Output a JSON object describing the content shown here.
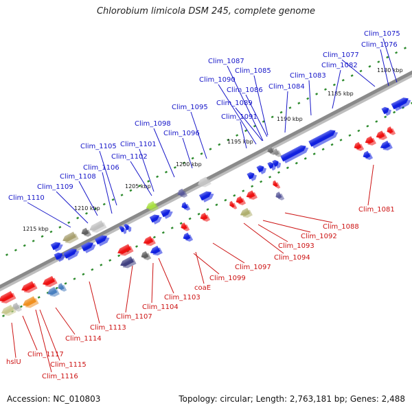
{
  "title": "Chlorobium limicola DSM 245, complete genome",
  "footer": {
    "accession": "Accession: NC_010803",
    "summary": "Topology: circular; Length: 2,763,181 bp; Genes: 2,488"
  },
  "colors": {
    "forward_gene": "#1020e0",
    "reverse_gene": "#ee1111",
    "forward_label": "#1515c8",
    "reverse_label": "#cc1111",
    "axis": "#8a8a8a",
    "dots": "#2e8b2e"
  },
  "scale_ticks": [
    "1180 kbp",
    "1185 kbp",
    "1190 kbp",
    "1195 kbp",
    "1200 kbp",
    "1205 kbp",
    "1210 kbp",
    "1215 kbp"
  ],
  "forward_labels": [
    "Clim_1075",
    "Clim_1076",
    "Clim_1077",
    "Clim_1082",
    "Clim_1083",
    "Clim_1084",
    "Clim_1085",
    "Clim_1086",
    "Clim_1087",
    "Clim_1089",
    "Clim_1090",
    "Clim_1091",
    "Clim_1095",
    "Clim_1096",
    "Clim_1098",
    "Clim_1101",
    "Clim_1102",
    "Clim_1105",
    "Clim_1106",
    "Clim_1108",
    "Clim_1109",
    "Clim_1110"
  ],
  "reverse_labels": [
    "Clim_1081",
    "Clim_1088",
    "Clim_1092",
    "Clim_1093",
    "Clim_1094",
    "Clim_1097",
    "Clim_1099",
    "coaE",
    "Clim_1103",
    "Clim_1104",
    "Clim_1107",
    "Clim_1113",
    "Clim_1114",
    "Clim_1115",
    "Clim_1116",
    "Clim_1117",
    "hslU"
  ]
}
